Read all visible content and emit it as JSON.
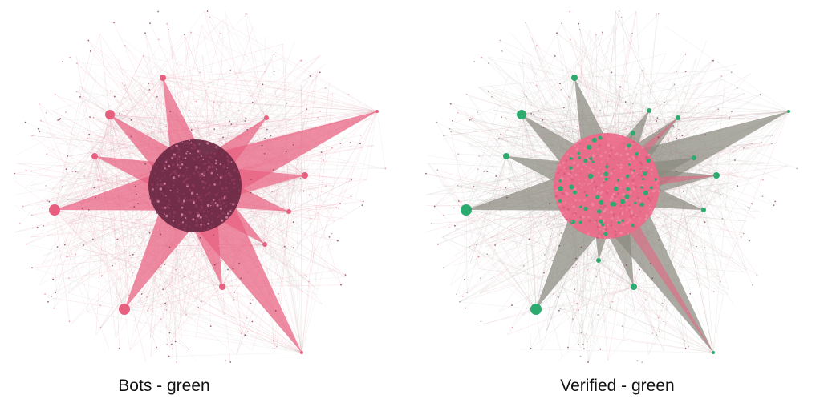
{
  "colors": {
    "background": "#ffffff",
    "bot_pink": "#e8607f",
    "pink_edge": "#ee8aa2",
    "core_dark": "#6b2a45",
    "core_pink": "#ec6b8a",
    "green": "#2daa6e",
    "gray_edge": "#8a8a80",
    "node_dark": "#7a3550"
  },
  "panels": [
    {
      "id": "left",
      "caption": "Bots - green",
      "core": "dark",
      "hubs": "pink",
      "star": "pink"
    },
    {
      "id": "right",
      "caption": "Verified - green",
      "core": "pink",
      "hubs": "green",
      "star": "gray"
    }
  ]
}
